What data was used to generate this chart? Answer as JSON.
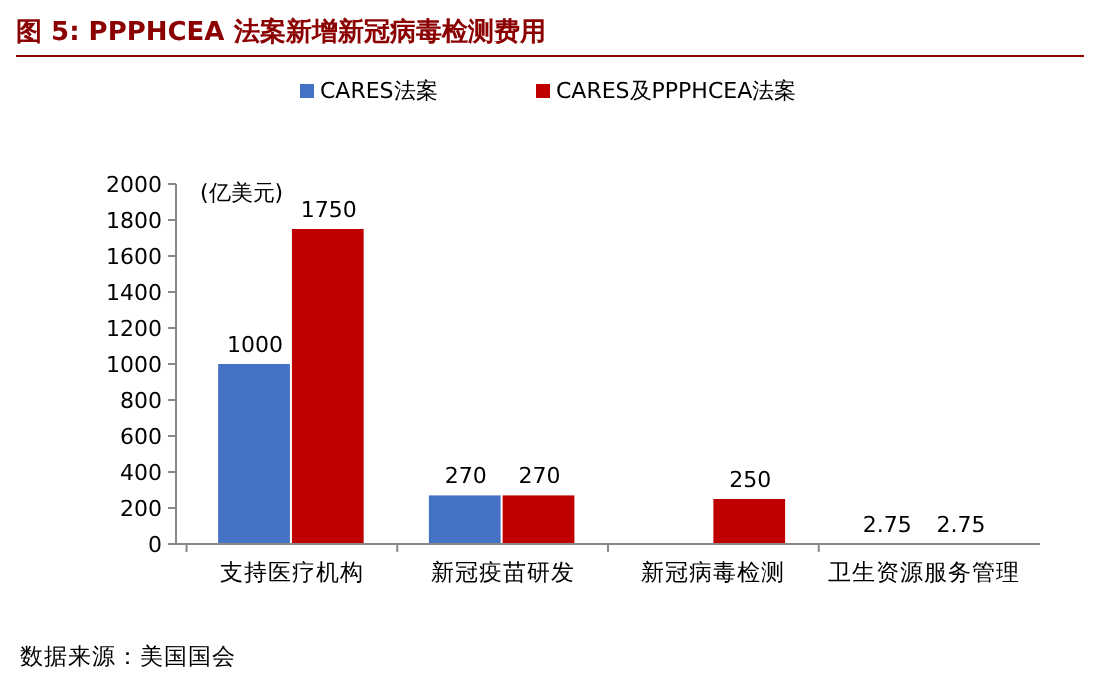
{
  "chart_data": {
    "type": "bar",
    "title": "图 5: PPPHCEA 法案新增新冠病毒检测费用",
    "ylabel": "(亿美元)",
    "categories": [
      "支持医疗机构",
      "新冠疫苗研发",
      "新冠病毒检测",
      "卫生资源服务管理"
    ],
    "series": [
      {
        "name": "CARES法案",
        "color": "#4472c4",
        "values": [
          1000,
          270,
          null,
          2.75
        ]
      },
      {
        "name": "CARES及PPPHCEA法案",
        "color": "#c00000",
        "values": [
          1750,
          270,
          250,
          2.75
        ]
      }
    ],
    "ylim": [
      0,
      2000
    ],
    "yticks": [
      0,
      200,
      400,
      600,
      800,
      1000,
      1200,
      1400,
      1600,
      1800,
      2000
    ],
    "data_labels": true,
    "grid": false,
    "legend": "top",
    "annotations": [
      "数据来源：美国国会"
    ]
  }
}
